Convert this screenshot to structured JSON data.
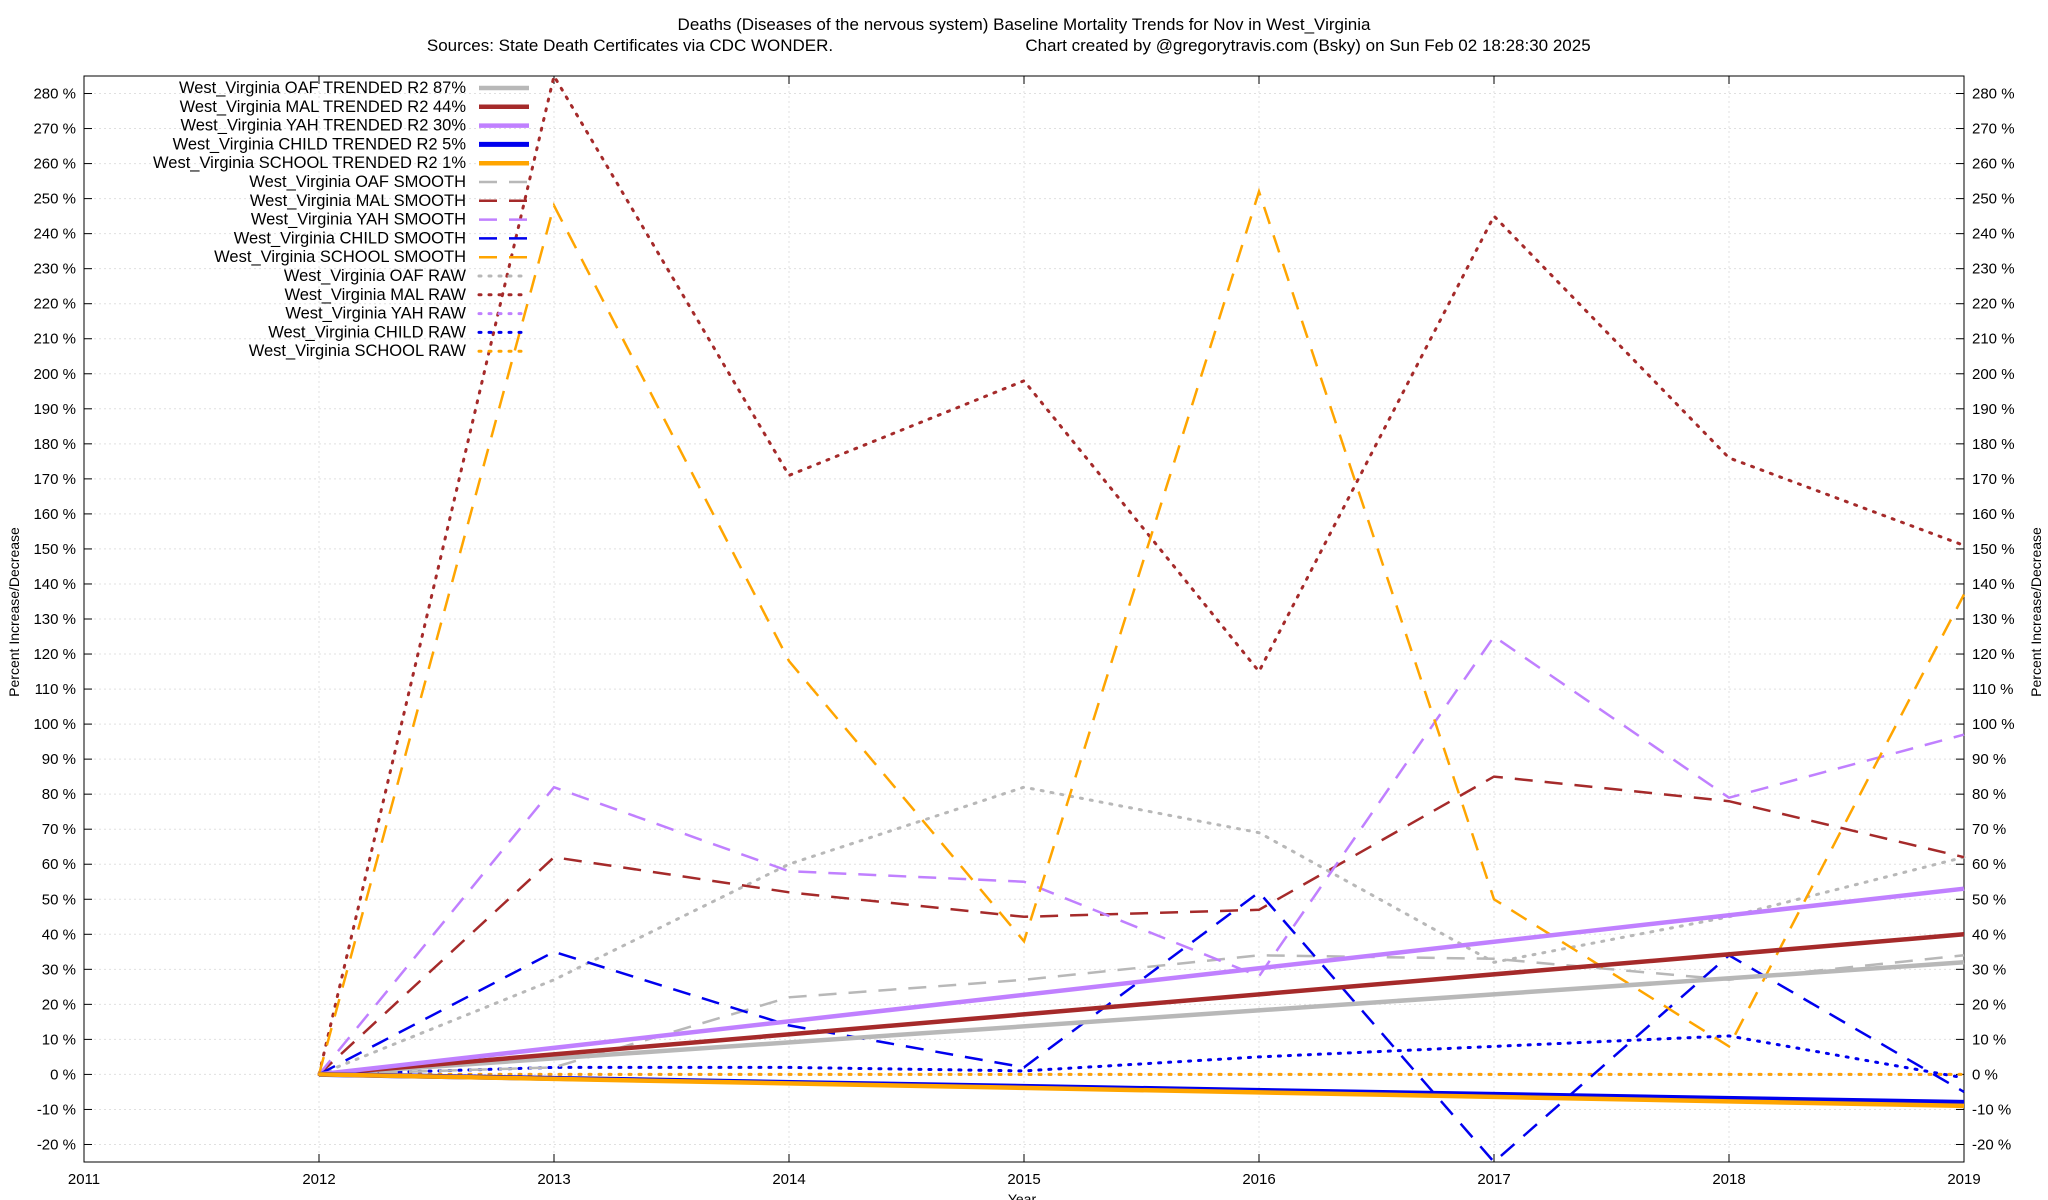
{
  "chart_data": {
    "type": "line",
    "title": "Deaths (Diseases of the nervous system)  Baseline Mortality Trends for Nov in West_Virginia",
    "subtitle_left": "Sources: State Death Certificates via CDC WONDER.",
    "subtitle_right": "Chart created by @gregorytravis.com (Bsky) on Sun Feb 02 18:28:30 2025",
    "xlabel": "Year",
    "ylabel": "Percent Increase/Decrease",
    "xlim": [
      2011,
      2019
    ],
    "ylim": [
      -25,
      285
    ],
    "x_ticks": [
      2011,
      2012,
      2013,
      2014,
      2015,
      2016,
      2017,
      2018,
      2019
    ],
    "y_ticks": [
      -20,
      -10,
      0,
      10,
      20,
      30,
      40,
      50,
      60,
      70,
      80,
      90,
      100,
      110,
      120,
      130,
      140,
      150,
      160,
      170,
      180,
      190,
      200,
      210,
      220,
      230,
      240,
      250,
      260,
      270,
      280
    ],
    "y_tick_suffix": " %",
    "grid": true,
    "legend_position": "top-left",
    "colors": {
      "OAF": "#b8b8b8",
      "MAL": "#a52a2a",
      "YAH": "#c080ff",
      "CHILD": "#0000ee",
      "SCHOOL": "#ffa500",
      "grid": "#e0e0e0"
    },
    "x": [
      2012,
      2013,
      2014,
      2015,
      2016,
      2017,
      2018,
      2019
    ],
    "series": [
      {
        "name": "West_Virginia OAF TRENDED R2  87%",
        "group": "OAF",
        "kind": "trended",
        "x": [
          2012,
          2019
        ],
        "values": [
          0,
          32
        ]
      },
      {
        "name": "West_Virginia MAL TRENDED R2  44%",
        "group": "MAL",
        "kind": "trended",
        "x": [
          2012,
          2019
        ],
        "values": [
          0,
          40
        ]
      },
      {
        "name": "West_Virginia YAH TRENDED R2  30%",
        "group": "YAH",
        "kind": "trended",
        "x": [
          2012,
          2019
        ],
        "values": [
          0,
          53
        ]
      },
      {
        "name": "West_Virginia CHILD TRENDED R2   5%",
        "group": "CHILD",
        "kind": "trended",
        "x": [
          2012,
          2019
        ],
        "values": [
          0,
          -8
        ]
      },
      {
        "name": "West_Virginia SCHOOL TRENDED R2   1%",
        "group": "SCHOOL",
        "kind": "trended",
        "x": [
          2012,
          2019
        ],
        "values": [
          0,
          -9
        ]
      },
      {
        "name": "West_Virginia OAF SMOOTH",
        "group": "OAF",
        "kind": "smooth",
        "x": [
          2012,
          2013,
          2014,
          2015,
          2016,
          2017,
          2018,
          2019
        ],
        "values": [
          0,
          2,
          22,
          27,
          34,
          33,
          27,
          34
        ]
      },
      {
        "name": "West_Virginia MAL SMOOTH",
        "group": "MAL",
        "kind": "smooth",
        "x": [
          2012,
          2013,
          2014,
          2015,
          2016,
          2017,
          2018,
          2019
        ],
        "values": [
          0,
          62,
          52,
          45,
          47,
          85,
          78,
          62
        ]
      },
      {
        "name": "West_Virginia YAH SMOOTH",
        "group": "YAH",
        "kind": "smooth",
        "x": [
          2012,
          2013,
          2014,
          2015,
          2016,
          2017,
          2018,
          2019
        ],
        "values": [
          0,
          82,
          58,
          55,
          28,
          125,
          79,
          97
        ]
      },
      {
        "name": "West_Virginia CHILD SMOOTH",
        "group": "CHILD",
        "kind": "smooth",
        "x": [
          2012,
          2013,
          2014,
          2015,
          2016,
          2017,
          2018,
          2019
        ],
        "values": [
          0,
          35,
          14,
          2,
          52,
          -25,
          34,
          -5
        ]
      },
      {
        "name": "West_Virginia SCHOOL SMOOTH",
        "group": "SCHOOL",
        "kind": "smooth",
        "x": [
          2012,
          2013,
          2014,
          2015,
          2016,
          2017,
          2018,
          2019
        ],
        "values": [
          0,
          248,
          118,
          38,
          252,
          50,
          8,
          137
        ]
      },
      {
        "name": "West_Virginia OAF RAW",
        "group": "OAF",
        "kind": "raw",
        "x": [
          2012,
          2013,
          2014,
          2015,
          2016,
          2017,
          2018,
          2019
        ],
        "values": [
          0,
          27,
          60,
          82,
          69,
          32,
          45,
          62
        ]
      },
      {
        "name": "West_Virginia MAL RAW",
        "group": "MAL",
        "kind": "raw",
        "x": [
          2012,
          2013,
          2014,
          2015,
          2016,
          2017,
          2018,
          2019
        ],
        "values": [
          0,
          285,
          171,
          198,
          115,
          245,
          176,
          151
        ]
      },
      {
        "name": "West_Virginia YAH RAW",
        "group": "YAH",
        "kind": "raw",
        "x": [
          2012,
          2013,
          2014,
          2015,
          2016,
          2017,
          2018,
          2019
        ],
        "values": [
          0,
          0,
          0,
          0,
          0,
          0,
          0,
          0
        ]
      },
      {
        "name": "West_Virginia CHILD RAW",
        "group": "CHILD",
        "kind": "raw",
        "x": [
          2012,
          2013,
          2014,
          2015,
          2016,
          2017,
          2018,
          2019
        ],
        "values": [
          0,
          2,
          2,
          1,
          5,
          8,
          11,
          -1
        ]
      },
      {
        "name": "West_Virginia SCHOOL RAW",
        "group": "SCHOOL",
        "kind": "raw",
        "x": [
          2012,
          2013,
          2014,
          2015,
          2016,
          2017,
          2018,
          2019
        ],
        "values": [
          0,
          0,
          0,
          0,
          0,
          0,
          0,
          0
        ]
      }
    ]
  }
}
